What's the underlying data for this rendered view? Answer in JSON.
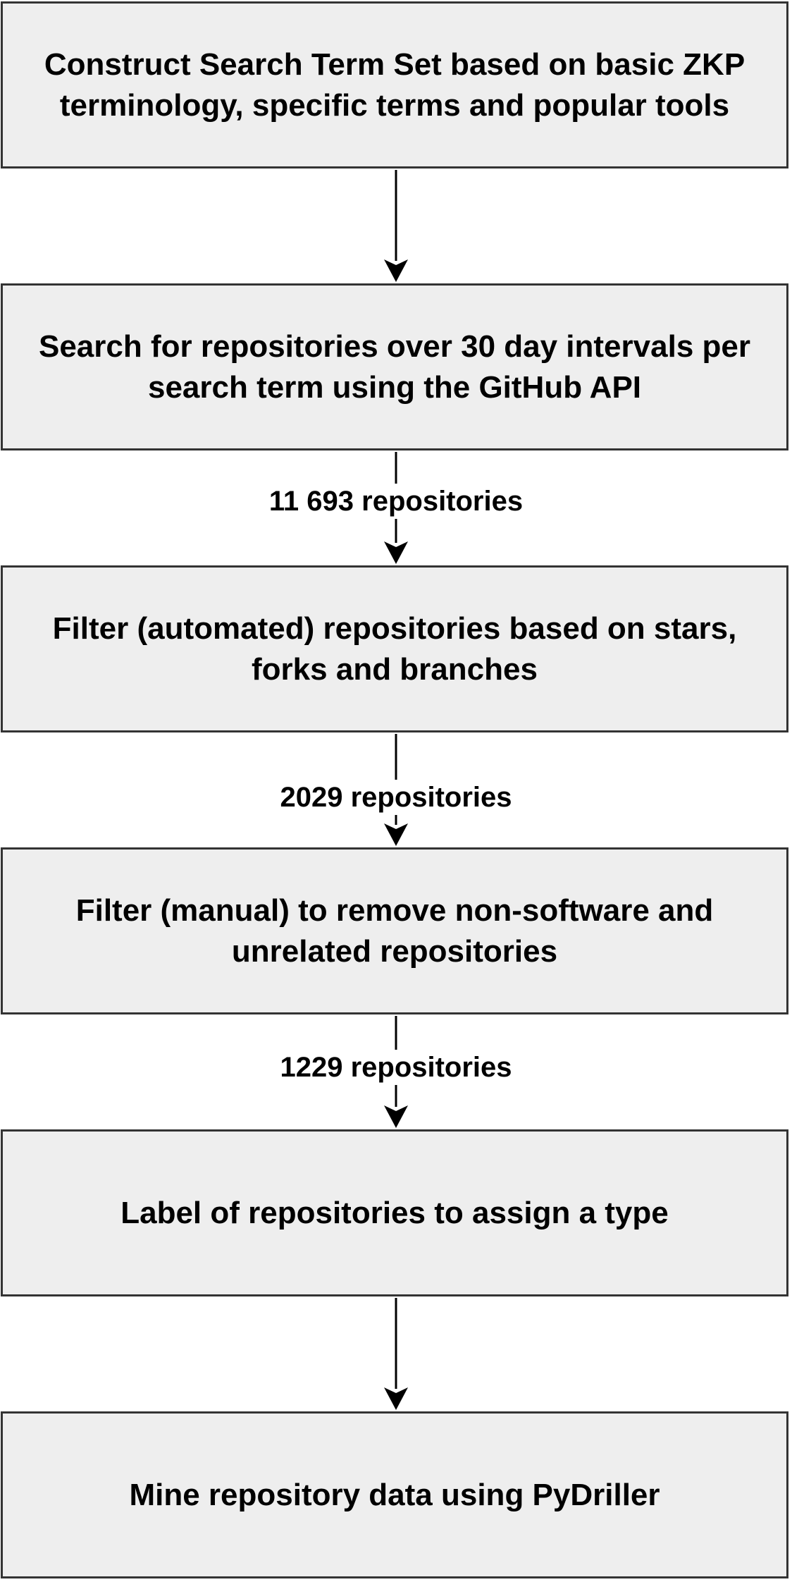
{
  "steps": [
    {
      "label": "Construct Search Term Set based on basic ZKP\nterminology, specific terms and popular tools"
    },
    {
      "label": "Search for repositories over 30 day intervals per\nsearch term using the GitHub API"
    },
    {
      "label": "Filter (automated) repositories based on stars,\nforks and branches"
    },
    {
      "label": "Filter (manual) to remove non-software and\nunrelated repositories"
    },
    {
      "label": "Label of repositories to assign a type"
    },
    {
      "label": "Mine repository data using PyDriller"
    }
  ],
  "edges": [
    {
      "label": ""
    },
    {
      "label": "11 693 repositories"
    },
    {
      "label": "2029 repositories"
    },
    {
      "label": "1229 repositories"
    },
    {
      "label": ""
    }
  ],
  "colors": {
    "box_fill": "#eeeeee",
    "box_border": "#333333",
    "arrow": "#000000",
    "text": "#000000"
  }
}
